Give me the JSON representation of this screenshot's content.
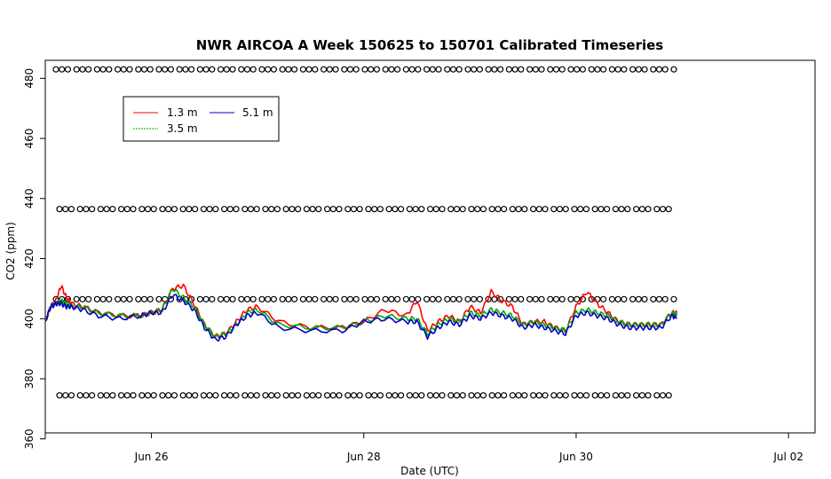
{
  "chart_data": {
    "type": "line",
    "title": "NWR AIRCOA A  Week 150625 to 150701  Calibrated Timeseries",
    "xlabel": "Date (UTC)",
    "ylabel": "CO2 (ppm)",
    "xlim": [
      "2015-06-25 00:00",
      "2015-07-02 06:00"
    ],
    "ylim": [
      362,
      486
    ],
    "x_ticks": [
      {
        "label": "Jun 26",
        "value": "2015-06-26"
      },
      {
        "label": "Jun 28",
        "value": "2015-06-28"
      },
      {
        "label": "Jun 30",
        "value": "2015-06-30"
      },
      {
        "label": "Jul 02",
        "value": "2015-07-02"
      }
    ],
    "y_ticks": [
      360,
      380,
      400,
      420,
      440,
      460,
      480
    ],
    "grid": false,
    "legend": {
      "placement": "top-left",
      "entries": [
        {
          "label": "1.3 m",
          "color": "#ff0000"
        },
        {
          "label": "5.1 m",
          "color": "#0000cc"
        },
        {
          "label": "3.5 m",
          "color": "#00aa00"
        }
      ]
    },
    "series": [
      {
        "name": "1.3 m",
        "color": "#ff0000",
        "x_days": [
          0.0,
          0.05,
          0.1,
          0.15,
          0.2,
          0.25,
          0.35,
          0.5,
          0.7,
          0.9,
          1.0,
          1.1,
          1.2,
          1.3,
          1.4,
          1.5,
          1.6,
          1.7,
          1.8,
          1.9,
          2.0,
          2.2,
          2.5,
          2.8,
          3.0,
          3.2,
          3.4,
          3.5,
          3.6,
          3.7,
          3.8,
          3.9,
          4.0,
          4.1,
          4.2,
          4.3,
          4.4,
          4.5,
          4.6,
          4.7,
          4.8,
          4.9,
          5.0,
          5.1,
          5.2,
          5.3,
          5.4,
          5.5,
          5.6,
          5.7,
          5.8,
          5.9,
          5.95
        ],
        "values": [
          399,
          404,
          406,
          411,
          407,
          405,
          404,
          402,
          401,
          401,
          402,
          403,
          410,
          411,
          405,
          398,
          394,
          395,
          399,
          403,
          404,
          399,
          397,
          397,
          399,
          403,
          401,
          406,
          396,
          399,
          401,
          399,
          404,
          402,
          409,
          406,
          404,
          398,
          399,
          399,
          397,
          396,
          404,
          409,
          405,
          402,
          399,
          398,
          398,
          398,
          398,
          402,
          402
        ]
      },
      {
        "name": "3.5 m",
        "color": "#00aa00",
        "x_days": [
          0.0,
          0.05,
          0.1,
          0.15,
          0.2,
          0.25,
          0.35,
          0.5,
          0.7,
          0.9,
          1.0,
          1.1,
          1.2,
          1.3,
          1.4,
          1.5,
          1.6,
          1.7,
          1.8,
          1.9,
          2.0,
          2.2,
          2.5,
          2.8,
          3.0,
          3.2,
          3.4,
          3.5,
          3.6,
          3.7,
          3.8,
          3.9,
          4.0,
          4.1,
          4.2,
          4.3,
          4.4,
          4.5,
          4.6,
          4.7,
          4.8,
          4.9,
          5.0,
          5.1,
          5.2,
          5.3,
          5.4,
          5.5,
          5.6,
          5.7,
          5.8,
          5.9,
          5.95
        ],
        "values": [
          399,
          404,
          405,
          406,
          405,
          404,
          404,
          402,
          401,
          401,
          402,
          403,
          410,
          407,
          404,
          398,
          394,
          395,
          398,
          402,
          403,
          398,
          397,
          397,
          399,
          401,
          400,
          400,
          395,
          398,
          400,
          399,
          402,
          401,
          403,
          402,
          401,
          398,
          399,
          398,
          397,
          396,
          402,
          403,
          402,
          401,
          399,
          398,
          398,
          398,
          398,
          402,
          401
        ]
      },
      {
        "name": "5.1 m",
        "color": "#0000cc",
        "x_days": [
          0.0,
          0.05,
          0.1,
          0.15,
          0.2,
          0.25,
          0.35,
          0.5,
          0.7,
          0.9,
          1.0,
          1.1,
          1.2,
          1.3,
          1.4,
          1.5,
          1.6,
          1.7,
          1.8,
          1.9,
          2.0,
          2.2,
          2.5,
          2.8,
          3.0,
          3.2,
          3.4,
          3.5,
          3.6,
          3.7,
          3.8,
          3.9,
          4.0,
          4.1,
          4.2,
          4.3,
          4.4,
          4.5,
          4.6,
          4.7,
          4.8,
          4.9,
          5.0,
          5.1,
          5.2,
          5.3,
          5.4,
          5.5,
          5.6,
          5.7,
          5.8,
          5.9,
          5.95
        ],
        "values": [
          399,
          404,
          405,
          405,
          404,
          404,
          403,
          401,
          400,
          401,
          402,
          402,
          408,
          406,
          403,
          397,
          393,
          394,
          398,
          401,
          402,
          397,
          396,
          396,
          399,
          400,
          399,
          399,
          394,
          397,
          399,
          398,
          401,
          400,
          402,
          401,
          400,
          397,
          398,
          397,
          396,
          395,
          401,
          402,
          401,
          400,
          398,
          397,
          397,
          397,
          397,
          401,
          400
        ]
      }
    ],
    "marker_rows": [
      {
        "label": "circles ~483 ppm",
        "y": 483
      },
      {
        "label": "circles ~437 ppm",
        "y": 436.5
      },
      {
        "label": "circles ~407 ppm",
        "y": 406.5
      },
      {
        "label": "circles ~375 ppm",
        "y": 374.5
      }
    ]
  }
}
